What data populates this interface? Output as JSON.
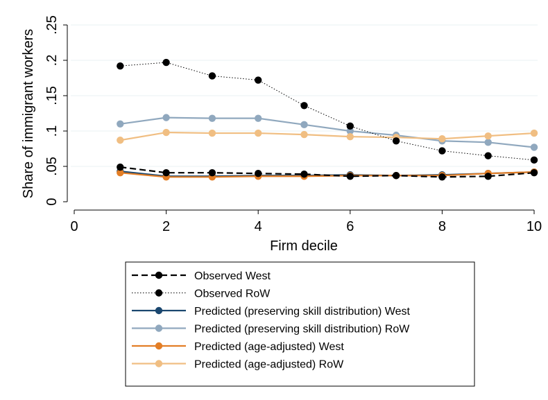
{
  "chart_data": {
    "type": "line",
    "title": "",
    "xlabel": "Firm decile",
    "ylabel": "Share of immigrant workers",
    "xlim": [
      0,
      10
    ],
    "ylim": [
      0,
      0.25
    ],
    "x_ticks": [
      0,
      2,
      4,
      6,
      8,
      10
    ],
    "x_tick_labels": [
      "0",
      "2",
      "4",
      "6",
      "8",
      "10"
    ],
    "y_ticks": [
      0,
      0.05,
      0.1,
      0.15,
      0.2,
      0.25
    ],
    "y_tick_labels": [
      "0",
      ".05",
      ".1",
      ".15",
      ".2",
      ".25"
    ],
    "grid": "horizontal",
    "legend_position": "bottom",
    "x": [
      1,
      2,
      3,
      4,
      5,
      6,
      7,
      8,
      9,
      10
    ],
    "series": [
      {
        "name": "Observed West",
        "color": "#000000",
        "line_style": "dashed",
        "values": [
          0.049,
          0.041,
          0.041,
          0.04,
          0.039,
          0.036,
          0.037,
          0.035,
          0.036,
          0.041
        ]
      },
      {
        "name": "Observed RoW",
        "color": "#000000",
        "line_style": "dotted",
        "values": [
          0.192,
          0.197,
          0.178,
          0.172,
          0.136,
          0.107,
          0.086,
          0.072,
          0.065,
          0.059
        ]
      },
      {
        "name": "Predicted (preserving skill distribution) West",
        "color": "#1a476f",
        "line_style": "solid",
        "values": [
          0.043,
          0.036,
          0.036,
          0.037,
          0.037,
          0.038,
          0.037,
          0.038,
          0.04,
          0.042
        ]
      },
      {
        "name": "Predicted (preserving skill distribution) RoW",
        "color": "#90a8be",
        "line_style": "solid",
        "values": [
          0.11,
          0.119,
          0.118,
          0.118,
          0.109,
          0.1,
          0.094,
          0.086,
          0.084,
          0.077
        ]
      },
      {
        "name": "Predicted (age-adjusted) West",
        "color": "#e37e26",
        "line_style": "solid",
        "values": [
          0.041,
          0.035,
          0.035,
          0.036,
          0.036,
          0.037,
          0.037,
          0.037,
          0.04,
          0.042
        ]
      },
      {
        "name": "Predicted (age-adjusted) RoW",
        "color": "#f0be82",
        "line_style": "solid",
        "values": [
          0.087,
          0.098,
          0.097,
          0.097,
          0.095,
          0.092,
          0.091,
          0.089,
          0.093,
          0.097
        ]
      }
    ]
  }
}
